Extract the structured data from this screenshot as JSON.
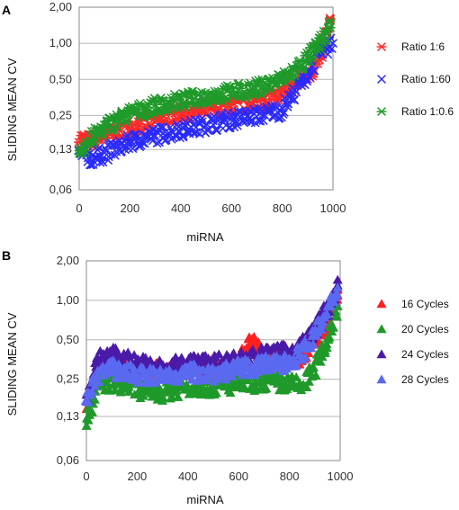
{
  "chart_data": [
    {
      "panel": "A",
      "type": "scatter",
      "xlabel": "miRNA",
      "ylabel": "SLIDING MEAN CV",
      "y_scale": "log2",
      "ylim": [
        0.06,
        2.0
      ],
      "xlim": [
        0,
        1000
      ],
      "yticks": [
        2.0,
        1.0,
        0.5,
        0.25,
        0.13,
        0.06
      ],
      "ytick_labels": [
        "2,00",
        "1,00",
        "0,50",
        "0,25",
        "0,13",
        "0,06"
      ],
      "xticks": [
        0,
        200,
        400,
        600,
        800,
        1000
      ],
      "xtick_labels": [
        "0",
        "200",
        "400",
        "600",
        "800",
        "1000"
      ],
      "grid": "horizontal",
      "legend_position": "right",
      "series": [
        {
          "name": "Ratio 1:6",
          "color": "#ff2a2a",
          "marker": "asterisk",
          "x": [
            0,
            50,
            100,
            200,
            300,
            400,
            500,
            600,
            700,
            800,
            850,
            900,
            950,
            990
          ],
          "y": [
            0.16,
            0.15,
            0.17,
            0.2,
            0.23,
            0.26,
            0.28,
            0.3,
            0.33,
            0.37,
            0.45,
            0.55,
            0.72,
            1.6
          ]
        },
        {
          "name": "Ratio 1:60",
          "color": "#2a2aff",
          "marker": "x",
          "x": [
            0,
            50,
            100,
            200,
            300,
            400,
            500,
            600,
            700,
            800,
            850,
            900,
            950,
            1000
          ],
          "y": [
            0.12,
            0.11,
            0.12,
            0.15,
            0.17,
            0.19,
            0.21,
            0.23,
            0.25,
            0.28,
            0.4,
            0.55,
            0.85,
            1.0
          ]
        },
        {
          "name": "Ratio 1:0.6",
          "color": "#1f9a2a",
          "marker": "asterisk",
          "x": [
            0,
            50,
            100,
            200,
            300,
            400,
            500,
            600,
            700,
            800,
            850,
            900,
            950,
            990
          ],
          "y": [
            0.13,
            0.16,
            0.2,
            0.26,
            0.3,
            0.33,
            0.36,
            0.39,
            0.42,
            0.5,
            0.6,
            0.75,
            1.0,
            1.35
          ]
        }
      ]
    },
    {
      "panel": "B",
      "type": "scatter",
      "xlabel": "miRNA",
      "ylabel": "SLIDING MEAN CV",
      "y_scale": "log2",
      "ylim": [
        0.06,
        2.0
      ],
      "xlim": [
        0,
        1000
      ],
      "yticks": [
        2.0,
        1.0,
        0.5,
        0.25,
        0.13,
        0.06
      ],
      "ytick_labels": [
        "2,00",
        "1,00",
        "0,50",
        "0,25",
        "0,13",
        "0,06"
      ],
      "xticks": [
        0,
        200,
        400,
        600,
        800,
        1000
      ],
      "xtick_labels": [
        "0",
        "200",
        "400",
        "600",
        "800",
        "1000"
      ],
      "grid": "horizontal",
      "legend_position": "right",
      "series": [
        {
          "name": "16 Cycles",
          "color": "#ff2020",
          "marker": "triangle",
          "x": [
            0,
            50,
            100,
            200,
            300,
            400,
            500,
            600,
            650,
            700,
            800,
            850,
            900,
            950,
            990
          ],
          "y": [
            0.16,
            0.3,
            0.33,
            0.3,
            0.28,
            0.3,
            0.3,
            0.32,
            0.5,
            0.36,
            0.36,
            0.38,
            0.5,
            0.7,
            1.2
          ]
        },
        {
          "name": "20 Cycles",
          "color": "#1f9a2a",
          "marker": "triangle",
          "x": [
            0,
            50,
            100,
            200,
            300,
            400,
            500,
            600,
            700,
            800,
            850,
            900,
            950,
            990
          ],
          "y": [
            0.12,
            0.22,
            0.24,
            0.21,
            0.2,
            0.22,
            0.22,
            0.23,
            0.24,
            0.23,
            0.22,
            0.3,
            0.5,
            0.9
          ]
        },
        {
          "name": "24 Cycles",
          "color": "#4a1aa8",
          "marker": "triangle",
          "x": [
            0,
            50,
            100,
            200,
            300,
            400,
            500,
            600,
            700,
            800,
            850,
            900,
            950,
            990
          ],
          "y": [
            0.18,
            0.35,
            0.38,
            0.33,
            0.3,
            0.33,
            0.33,
            0.35,
            0.38,
            0.4,
            0.45,
            0.6,
            0.85,
            1.3
          ]
        },
        {
          "name": "28 Cycles",
          "color": "#5a6af0",
          "marker": "triangle",
          "x": [
            0,
            50,
            100,
            200,
            300,
            400,
            500,
            600,
            700,
            800,
            850,
            900,
            950,
            990
          ],
          "y": [
            0.17,
            0.28,
            0.3,
            0.27,
            0.26,
            0.28,
            0.28,
            0.3,
            0.32,
            0.34,
            0.4,
            0.55,
            0.8,
            1.25
          ]
        }
      ]
    }
  ]
}
